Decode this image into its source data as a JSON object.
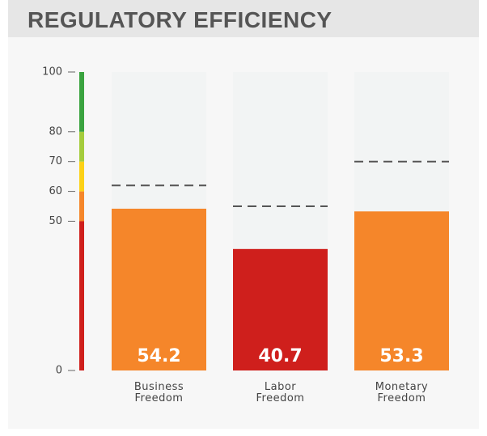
{
  "chart_data": {
    "type": "bar",
    "title": "REGULATORY EFFICIENCY",
    "categories": [
      "Business Freedom",
      "Labor Freedom",
      "Monetary Freedom"
    ],
    "values": [
      54.2,
      40.7,
      53.3
    ],
    "colors": [
      "#f5862a",
      "#cf1f1c",
      "#f5862a"
    ],
    "reference": [
      62,
      55,
      70
    ],
    "background_color": "#f2f4f4",
    "ylim": [
      0,
      100
    ],
    "yticks": [
      0,
      50,
      60,
      70,
      80,
      100
    ],
    "color_bands": [
      {
        "from": 0,
        "to": 50,
        "color": "#cf1f1c"
      },
      {
        "from": 50,
        "to": 60,
        "color": "#f5862a"
      },
      {
        "from": 60,
        "to": 70,
        "color": "#fcd116"
      },
      {
        "from": 70,
        "to": 80,
        "color": "#a4cc3c"
      },
      {
        "from": 80,
        "to": 100,
        "color": "#3aa33f"
      }
    ]
  }
}
